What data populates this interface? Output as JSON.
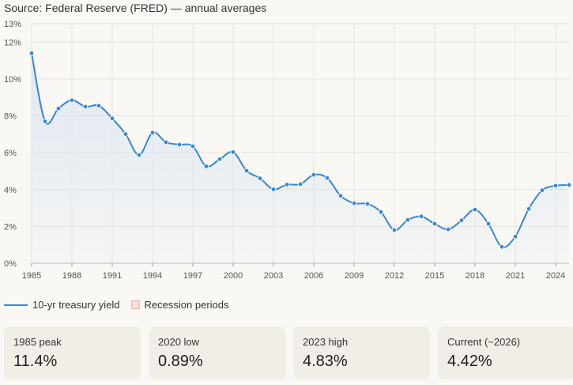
{
  "source": "Source: Federal Reserve (FRED) — annual averages",
  "legend": {
    "series": "10-yr treasury yield",
    "recession": "Recession periods"
  },
  "colors": {
    "line": "#3a87d2",
    "fill": "#dbe6f1",
    "grid": "#e6e3dd",
    "recession": "#f8dcd8"
  },
  "cards": [
    {
      "label": "1985 peak",
      "value": "11.4%"
    },
    {
      "label": "2020 low",
      "value": "0.89%"
    },
    {
      "label": "2023 high",
      "value": "4.83%"
    },
    {
      "label": "Current (~2026)",
      "value": "4.42%"
    }
  ],
  "chart_data": {
    "type": "area",
    "title": "",
    "xlabel": "",
    "ylabel": "",
    "xlim": [
      1985,
      2025
    ],
    "ylim": [
      0,
      13
    ],
    "yticks": [
      0,
      2,
      4,
      6,
      8,
      10,
      12,
      13
    ],
    "ytick_labels": [
      "0%",
      "2%",
      "4%",
      "6%",
      "8%",
      "10%",
      "12%",
      "13%"
    ],
    "xticks": [
      1985,
      1988,
      1991,
      1994,
      1997,
      2000,
      2003,
      2006,
      2009,
      2012,
      2015,
      2018,
      2021,
      2024
    ],
    "xtick_labels": [
      "1985",
      "1988",
      "1991",
      "1994",
      "1997",
      "2000",
      "2003",
      "2006",
      "2009",
      "2012",
      "2015",
      "2018",
      "2021",
      "2024"
    ],
    "grid": true,
    "series": [
      {
        "name": "10-yr treasury yield",
        "x": [
          1985,
          1986,
          1987,
          1988,
          1989,
          1990,
          1991,
          1992,
          1993,
          1994,
          1995,
          1996,
          1997,
          1998,
          1999,
          2000,
          2001,
          2002,
          2003,
          2004,
          2005,
          2006,
          2007,
          2008,
          2009,
          2010,
          2011,
          2012,
          2013,
          2014,
          2015,
          2016,
          2017,
          2018,
          2019,
          2020,
          2021,
          2022,
          2023,
          2024,
          2025
        ],
        "values": [
          11.4,
          7.7,
          8.4,
          8.85,
          8.5,
          8.55,
          7.86,
          7.01,
          5.87,
          7.09,
          6.57,
          6.44,
          6.35,
          5.26,
          5.65,
          6.03,
          5.02,
          4.61,
          4.01,
          4.27,
          4.29,
          4.8,
          4.63,
          3.66,
          3.26,
          3.22,
          2.78,
          1.8,
          2.35,
          2.54,
          2.14,
          1.84,
          2.33,
          2.91,
          2.14,
          0.89,
          1.45,
          2.95,
          3.96,
          4.21,
          4.25
        ]
      }
    ]
  }
}
